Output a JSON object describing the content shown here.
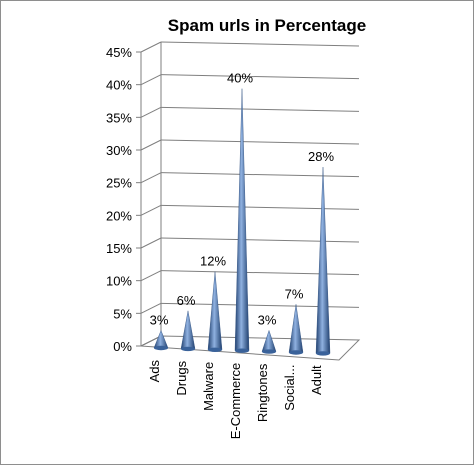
{
  "chart_data": {
    "type": "bar",
    "style": "3d-cone",
    "title": "Spam urls in Percentage",
    "xlabel": "",
    "ylabel": "",
    "categories": [
      "Ads",
      "Drugs",
      "Malware",
      "E-Commerce",
      "Ringtones",
      "Social...",
      "Adult"
    ],
    "values": [
      3,
      6,
      12,
      40,
      3,
      7,
      28
    ],
    "data_labels": [
      "3%",
      "6%",
      "12%",
      "40%",
      "3%",
      "7%",
      "28%"
    ],
    "ylim": [
      0,
      45
    ],
    "yticks": [
      0,
      5,
      10,
      15,
      20,
      25,
      30,
      35,
      40,
      45
    ],
    "ytick_labels": [
      "0%",
      "5%",
      "10%",
      "15%",
      "20%",
      "25%",
      "30%",
      "35%",
      "40%",
      "45%"
    ],
    "grid": true,
    "legend": "none",
    "colors": {
      "cone_light": "#8fb1e0",
      "cone_mid": "#4f81bd",
      "cone_dark": "#1f3f6e",
      "grid": "#7f7f7f"
    }
  }
}
